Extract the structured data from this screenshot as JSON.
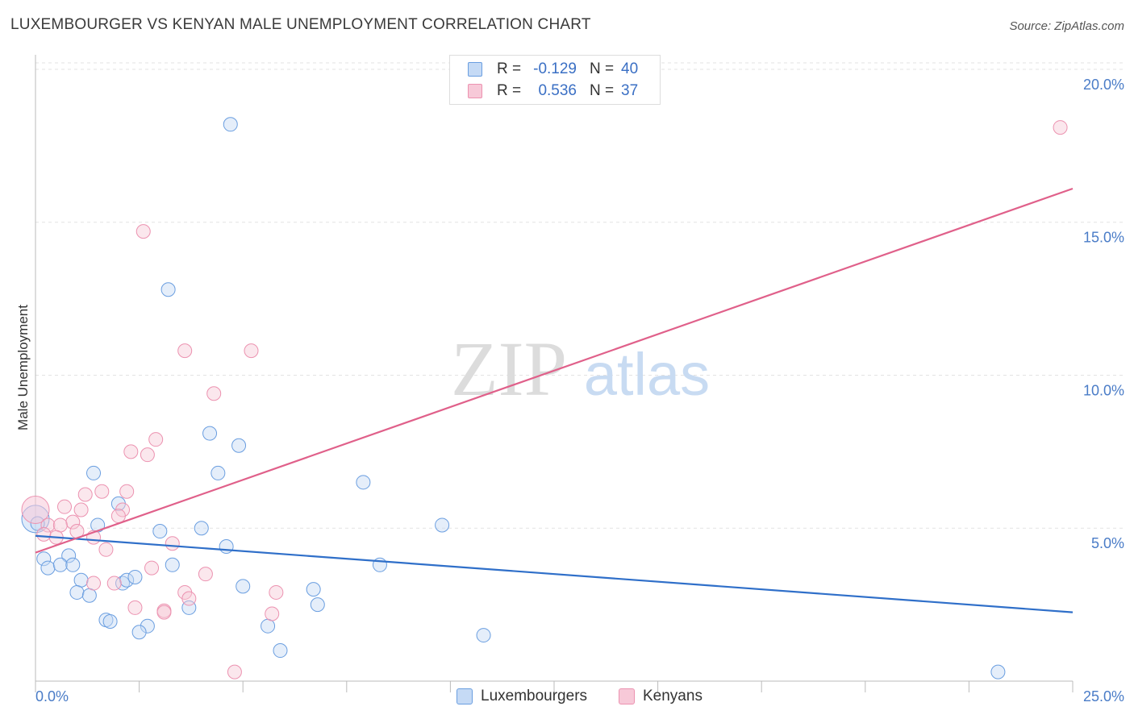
{
  "chart_data": {
    "type": "scatter",
    "title": "LUXEMBOURGER VS KENYAN MALE UNEMPLOYMENT CORRELATION CHART",
    "source": "Source: ZipAtlas.com",
    "watermark": {
      "bold": "ZIP",
      "light": "atlas"
    },
    "ylabel": "Male Unemployment",
    "xlim": [
      0,
      25
    ],
    "ylim": [
      0,
      20.5
    ],
    "yticks": [
      {
        "value": 5,
        "label": "5.0%"
      },
      {
        "value": 10,
        "label": "10.0%"
      },
      {
        "value": 15,
        "label": "15.0%"
      },
      {
        "value": 20,
        "label": "20.0%"
      }
    ],
    "xtick_labels": {
      "min": "0.0%",
      "max": "25.0%"
    },
    "xtick_marks": [
      0,
      2.5,
      5,
      7.5,
      10,
      12.5,
      15,
      17.5,
      20,
      22.5,
      25
    ],
    "grid": "dashed horizontal",
    "series": [
      {
        "name": "Luxembourgers",
        "color": "#6a9ee0",
        "fill": "#c5daf5",
        "line_color": "#2f6fc9",
        "R": "-0.129",
        "N": "40",
        "trend": {
          "x": [
            0,
            25
          ],
          "y": [
            4.75,
            2.25
          ]
        },
        "points": [
          {
            "x": 4.7,
            "y": 18.2
          },
          {
            "x": 3.2,
            "y": 12.8
          },
          {
            "x": 4.2,
            "y": 8.1
          },
          {
            "x": 4.9,
            "y": 7.7
          },
          {
            "x": 1.4,
            "y": 6.8
          },
          {
            "x": 4.4,
            "y": 6.8
          },
          {
            "x": 7.9,
            "y": 6.5
          },
          {
            "x": 2.0,
            "y": 5.8
          },
          {
            "x": 1.5,
            "y": 5.1
          },
          {
            "x": 9.8,
            "y": 5.1
          },
          {
            "x": 3.0,
            "y": 4.9
          },
          {
            "x": 4.0,
            "y": 5.0
          },
          {
            "x": 0.0,
            "y": 5.3
          },
          {
            "x": 4.6,
            "y": 4.4
          },
          {
            "x": 0.2,
            "y": 4.0
          },
          {
            "x": 0.8,
            "y": 4.1
          },
          {
            "x": 0.3,
            "y": 3.7
          },
          {
            "x": 0.6,
            "y": 3.8
          },
          {
            "x": 0.9,
            "y": 3.8
          },
          {
            "x": 3.3,
            "y": 3.8
          },
          {
            "x": 8.3,
            "y": 3.8
          },
          {
            "x": 1.1,
            "y": 3.3
          },
          {
            "x": 2.1,
            "y": 3.2
          },
          {
            "x": 2.2,
            "y": 3.3
          },
          {
            "x": 2.4,
            "y": 3.4
          },
          {
            "x": 5.0,
            "y": 3.1
          },
          {
            "x": 6.7,
            "y": 3.0
          },
          {
            "x": 1.0,
            "y": 2.9
          },
          {
            "x": 1.3,
            "y": 2.8
          },
          {
            "x": 3.7,
            "y": 2.4
          },
          {
            "x": 6.8,
            "y": 2.5
          },
          {
            "x": 1.7,
            "y": 2.0
          },
          {
            "x": 1.8,
            "y": 1.95
          },
          {
            "x": 2.7,
            "y": 1.8
          },
          {
            "x": 2.5,
            "y": 1.6
          },
          {
            "x": 5.6,
            "y": 1.8
          },
          {
            "x": 10.8,
            "y": 1.5
          },
          {
            "x": 5.9,
            "y": 1.0
          },
          {
            "x": 23.2,
            "y": 0.3
          },
          {
            "x": 0.05,
            "y": 5.15
          }
        ]
      },
      {
        "name": "Kenyans",
        "color": "#ec92b0",
        "fill": "#f7c9d8",
        "line_color": "#e0608a",
        "R": "0.536",
        "N": "37",
        "trend": {
          "x": [
            0,
            25
          ],
          "y": [
            4.2,
            16.1
          ]
        },
        "points": [
          {
            "x": 24.7,
            "y": 18.1
          },
          {
            "x": 2.6,
            "y": 14.7
          },
          {
            "x": 3.6,
            "y": 10.8
          },
          {
            "x": 5.2,
            "y": 10.8
          },
          {
            "x": 4.3,
            "y": 9.4
          },
          {
            "x": 2.9,
            "y": 7.9
          },
          {
            "x": 2.3,
            "y": 7.5
          },
          {
            "x": 2.7,
            "y": 7.4
          },
          {
            "x": 1.6,
            "y": 6.2
          },
          {
            "x": 2.2,
            "y": 6.2
          },
          {
            "x": 1.2,
            "y": 6.1
          },
          {
            "x": 0.7,
            "y": 5.7
          },
          {
            "x": 2.1,
            "y": 5.6
          },
          {
            "x": 1.1,
            "y": 5.6
          },
          {
            "x": 2.0,
            "y": 5.4
          },
          {
            "x": 0.9,
            "y": 5.2
          },
          {
            "x": 0.0,
            "y": 5.6
          },
          {
            "x": 0.3,
            "y": 5.1
          },
          {
            "x": 0.6,
            "y": 5.1
          },
          {
            "x": 1.4,
            "y": 4.7
          },
          {
            "x": 1.0,
            "y": 4.9
          },
          {
            "x": 0.5,
            "y": 4.7
          },
          {
            "x": 0.2,
            "y": 4.8
          },
          {
            "x": 3.3,
            "y": 4.5
          },
          {
            "x": 1.7,
            "y": 4.3
          },
          {
            "x": 2.8,
            "y": 3.7
          },
          {
            "x": 4.1,
            "y": 3.5
          },
          {
            "x": 1.4,
            "y": 3.2
          },
          {
            "x": 1.9,
            "y": 3.2
          },
          {
            "x": 3.6,
            "y": 2.9
          },
          {
            "x": 5.8,
            "y": 2.9
          },
          {
            "x": 3.7,
            "y": 2.7
          },
          {
            "x": 2.4,
            "y": 2.4
          },
          {
            "x": 3.1,
            "y": 2.3
          },
          {
            "x": 3.1,
            "y": 2.25
          },
          {
            "x": 5.7,
            "y": 2.2
          },
          {
            "x": 4.8,
            "y": 0.3
          }
        ]
      }
    ]
  }
}
